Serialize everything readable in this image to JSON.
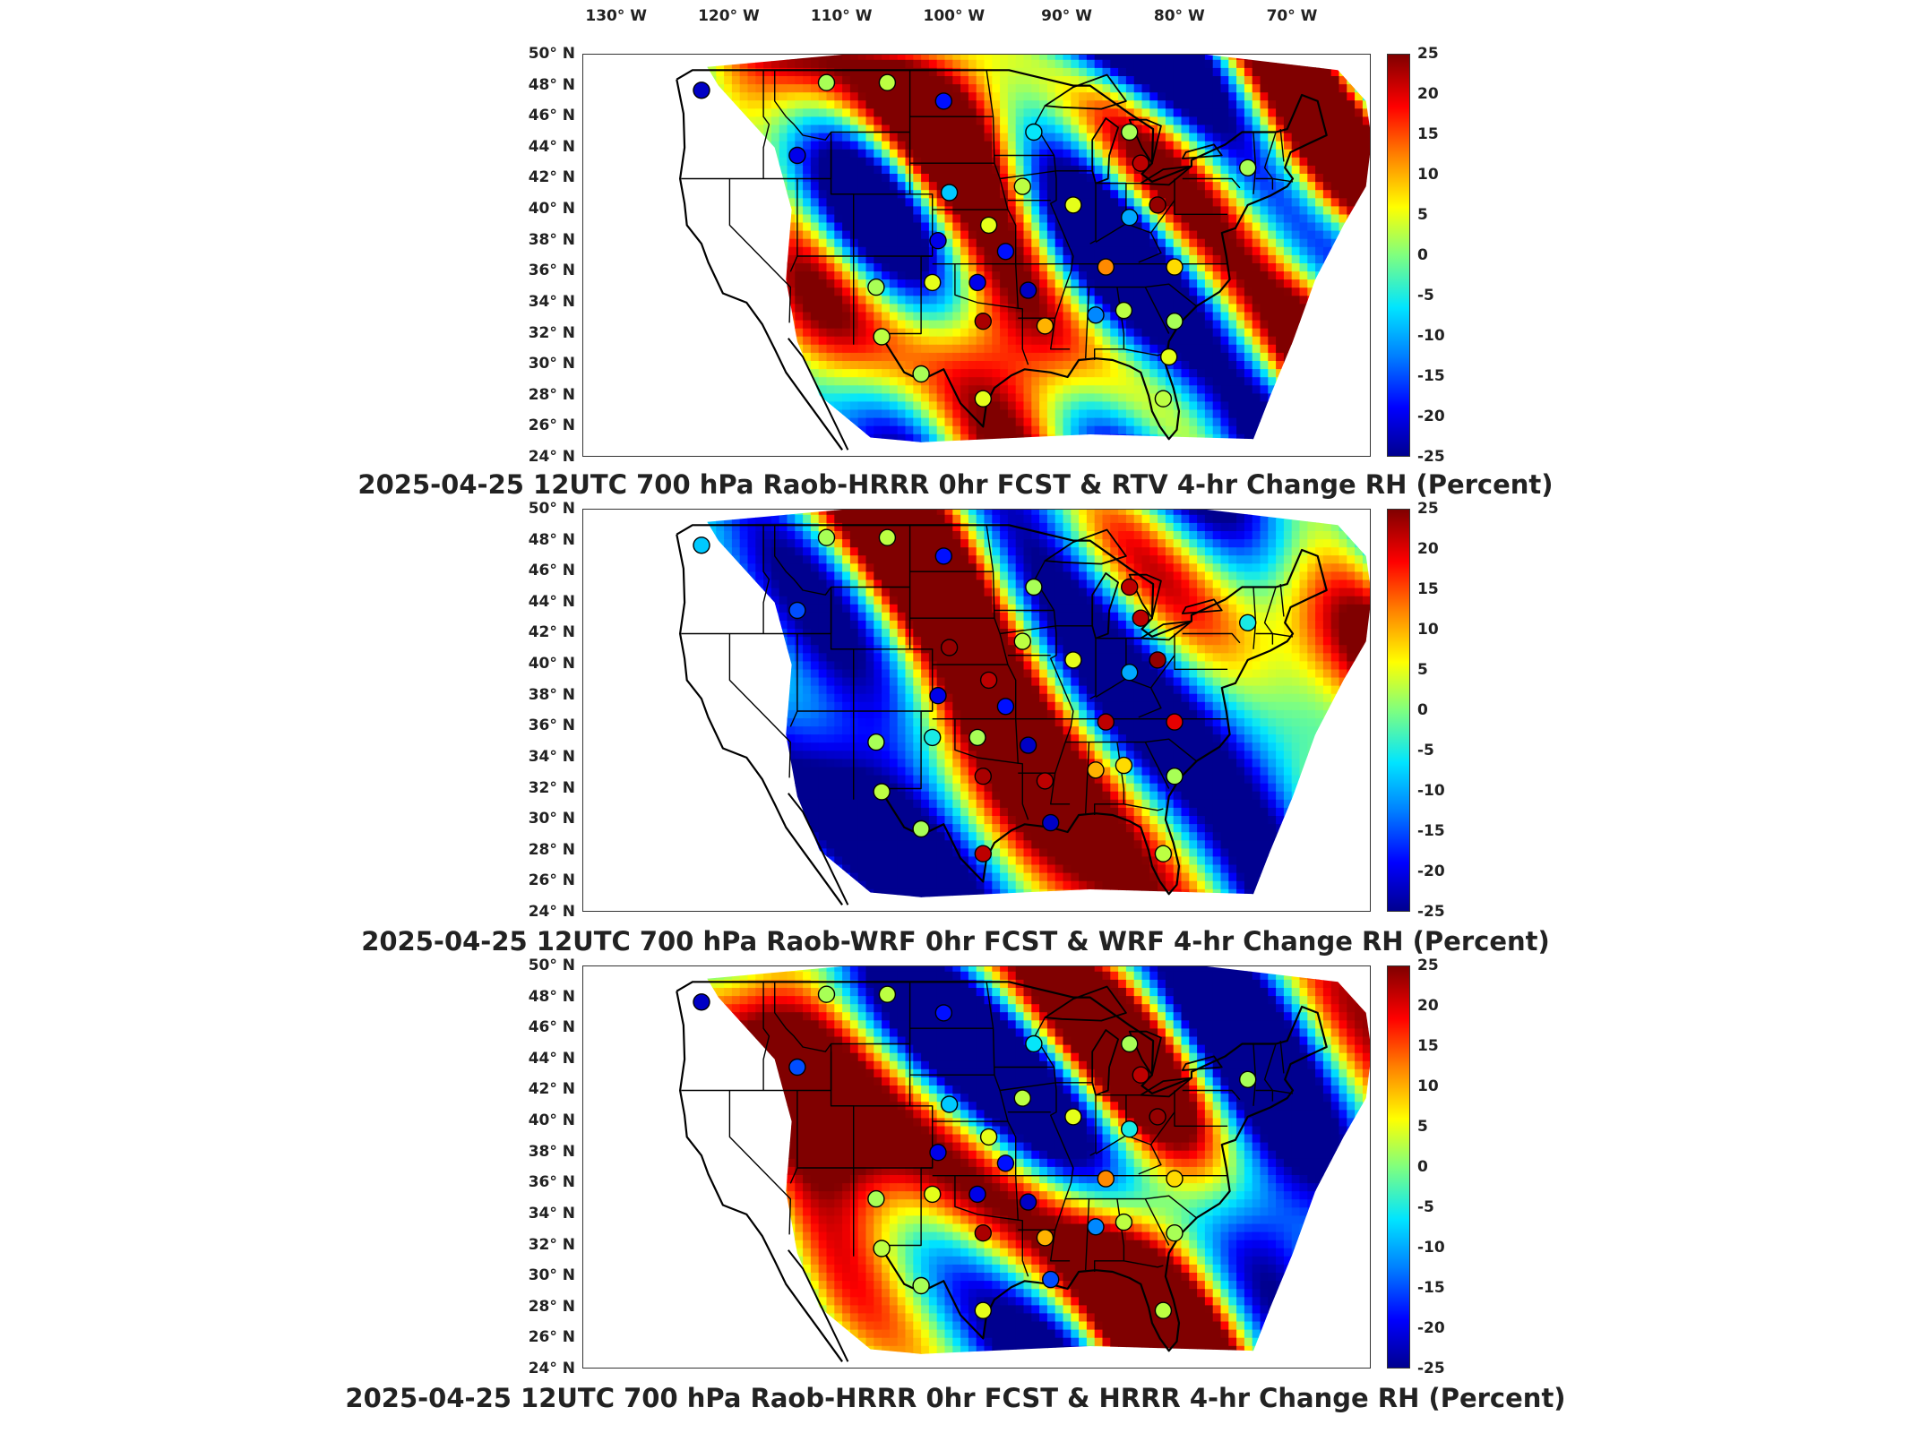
{
  "longitude_labels": [
    "130° W",
    "120° W",
    "110° W",
    "100° W",
    "90° W",
    "80° W",
    "70° W"
  ],
  "latitude_labels": [
    "50° N",
    "48° N",
    "46° N",
    "44° N",
    "42° N",
    "40° N",
    "38° N",
    "36° N",
    "34° N",
    "32° N",
    "30° N",
    "28° N",
    "26° N",
    "24° N"
  ],
  "colorbar_ticks": [
    "25",
    "20",
    "15",
    "10",
    "5",
    "0",
    "-5",
    "-10",
    "-15",
    "-20",
    "-25"
  ],
  "colormap": [
    "#00008f",
    "#0000ff",
    "#0080ff",
    "#00e5ff",
    "#7fff7f",
    "#ffff00",
    "#ff8000",
    "#ff0000",
    "#800000"
  ],
  "panels": [
    {
      "title": "2025-04-25 12UTC 700 hPa Raob-HRRR 0hr FCST & RTV 4-hr Change RH (Percent)",
      "field": "RTV 4-hr Change RH",
      "stations": [
        {
          "lon": -122.5,
          "lat": 47.7,
          "value": -22
        },
        {
          "lon": -111.4,
          "lat": 48.2,
          "value": 2
        },
        {
          "lon": -106.0,
          "lat": 48.2,
          "value": 3
        },
        {
          "lon": -101.0,
          "lat": 47.0,
          "value": -18
        },
        {
          "lon": -93.0,
          "lat": 45.0,
          "value": -6
        },
        {
          "lon": -84.5,
          "lat": 45.0,
          "value": 2
        },
        {
          "lon": -114.0,
          "lat": 43.5,
          "value": -20
        },
        {
          "lon": -83.5,
          "lat": 43.0,
          "value": 22
        },
        {
          "lon": -74.0,
          "lat": 42.7,
          "value": 2
        },
        {
          "lon": -100.5,
          "lat": 41.1,
          "value": -8
        },
        {
          "lon": -94.0,
          "lat": 41.5,
          "value": 3
        },
        {
          "lon": -89.5,
          "lat": 40.3,
          "value": 5
        },
        {
          "lon": -82.0,
          "lat": 40.3,
          "value": 24
        },
        {
          "lon": -84.5,
          "lat": 39.5,
          "value": -10
        },
        {
          "lon": -97.0,
          "lat": 39.0,
          "value": 5
        },
        {
          "lon": -101.5,
          "lat": 38.0,
          "value": -20
        },
        {
          "lon": -95.5,
          "lat": 37.3,
          "value": -18
        },
        {
          "lon": -86.6,
          "lat": 36.3,
          "value": 12
        },
        {
          "lon": -80.5,
          "lat": 36.3,
          "value": 8
        },
        {
          "lon": -93.5,
          "lat": 34.8,
          "value": -22
        },
        {
          "lon": -107.0,
          "lat": 35.0,
          "value": 2
        },
        {
          "lon": -102.0,
          "lat": 35.3,
          "value": 5
        },
        {
          "lon": -98.0,
          "lat": 35.3,
          "value": -20
        },
        {
          "lon": -97.5,
          "lat": 32.8,
          "value": 23
        },
        {
          "lon": -92.0,
          "lat": 32.5,
          "value": 10
        },
        {
          "lon": -87.5,
          "lat": 33.2,
          "value": -12
        },
        {
          "lon": -85.0,
          "lat": 33.5,
          "value": 3
        },
        {
          "lon": -80.5,
          "lat": 32.8,
          "value": 2
        },
        {
          "lon": -106.5,
          "lat": 31.8,
          "value": 3
        },
        {
          "lon": -103.0,
          "lat": 29.4,
          "value": 2
        },
        {
          "lon": -97.5,
          "lat": 27.8,
          "value": 5
        },
        {
          "lon": -81.5,
          "lat": 27.8,
          "value": 3
        },
        {
          "lon": -81.0,
          "lat": 30.5,
          "value": 5
        }
      ]
    },
    {
      "title": "2025-04-25 12UTC 700 hPa Raob-WRF 0hr FCST & WRF 4-hr Change RH (Percent)",
      "field": "WRF 4-hr Change RH",
      "stations": [
        {
          "lon": -122.5,
          "lat": 47.7,
          "value": -8
        },
        {
          "lon": -111.4,
          "lat": 48.2,
          "value": 2
        },
        {
          "lon": -106.0,
          "lat": 48.2,
          "value": 3
        },
        {
          "lon": -101.0,
          "lat": 47.0,
          "value": -18
        },
        {
          "lon": -93.0,
          "lat": 45.0,
          "value": 2
        },
        {
          "lon": -84.5,
          "lat": 45.0,
          "value": 22
        },
        {
          "lon": -114.0,
          "lat": 43.5,
          "value": -15
        },
        {
          "lon": -83.5,
          "lat": 43.0,
          "value": 22
        },
        {
          "lon": -74.0,
          "lat": 42.7,
          "value": -5
        },
        {
          "lon": -100.5,
          "lat": 41.1,
          "value": 24
        },
        {
          "lon": -94.0,
          "lat": 41.5,
          "value": 3
        },
        {
          "lon": -89.5,
          "lat": 40.3,
          "value": 5
        },
        {
          "lon": -82.0,
          "lat": 40.3,
          "value": 24
        },
        {
          "lon": -84.5,
          "lat": 39.5,
          "value": -10
        },
        {
          "lon": -97.0,
          "lat": 39.0,
          "value": 22
        },
        {
          "lon": -101.5,
          "lat": 38.0,
          "value": -20
        },
        {
          "lon": -95.5,
          "lat": 37.3,
          "value": -18
        },
        {
          "lon": -86.6,
          "lat": 36.3,
          "value": 22
        },
        {
          "lon": -80.5,
          "lat": 36.3,
          "value": 20
        },
        {
          "lon": -93.5,
          "lat": 34.8,
          "value": -22
        },
        {
          "lon": -107.0,
          "lat": 35.0,
          "value": 2
        },
        {
          "lon": -102.0,
          "lat": 35.3,
          "value": -5
        },
        {
          "lon": -98.0,
          "lat": 35.3,
          "value": 2
        },
        {
          "lon": -97.5,
          "lat": 32.8,
          "value": 23
        },
        {
          "lon": -92.0,
          "lat": 32.5,
          "value": 22
        },
        {
          "lon": -87.5,
          "lat": 33.2,
          "value": 10
        },
        {
          "lon": -85.0,
          "lat": 33.5,
          "value": 8
        },
        {
          "lon": -80.5,
          "lat": 32.8,
          "value": 2
        },
        {
          "lon": -106.5,
          "lat": 31.8,
          "value": 3
        },
        {
          "lon": -103.0,
          "lat": 29.4,
          "value": 2
        },
        {
          "lon": -97.5,
          "lat": 27.8,
          "value": 22
        },
        {
          "lon": -81.5,
          "lat": 27.8,
          "value": 3
        },
        {
          "lon": -91.5,
          "lat": 29.8,
          "value": -22
        }
      ]
    },
    {
      "title": "2025-04-25 12UTC 700 hPa Raob-HRRR 0hr FCST & HRRR 4-hr Change RH (Percent)",
      "field": "HRRR 4-hr Change RH",
      "stations": [
        {
          "lon": -122.5,
          "lat": 47.7,
          "value": -22
        },
        {
          "lon": -111.4,
          "lat": 48.2,
          "value": 2
        },
        {
          "lon": -106.0,
          "lat": 48.2,
          "value": 3
        },
        {
          "lon": -101.0,
          "lat": 47.0,
          "value": -18
        },
        {
          "lon": -93.0,
          "lat": 45.0,
          "value": -6
        },
        {
          "lon": -84.5,
          "lat": 45.0,
          "value": 2
        },
        {
          "lon": -114.0,
          "lat": 43.5,
          "value": -15
        },
        {
          "lon": -83.5,
          "lat": 43.0,
          "value": 22
        },
        {
          "lon": -74.0,
          "lat": 42.7,
          "value": 2
        },
        {
          "lon": -100.5,
          "lat": 41.1,
          "value": -8
        },
        {
          "lon": -94.0,
          "lat": 41.5,
          "value": 3
        },
        {
          "lon": -89.5,
          "lat": 40.3,
          "value": 5
        },
        {
          "lon": -82.0,
          "lat": 40.3,
          "value": 24
        },
        {
          "lon": -84.5,
          "lat": 39.5,
          "value": -5
        },
        {
          "lon": -97.0,
          "lat": 39.0,
          "value": 5
        },
        {
          "lon": -101.5,
          "lat": 38.0,
          "value": -20
        },
        {
          "lon": -95.5,
          "lat": 37.3,
          "value": -18
        },
        {
          "lon": -86.6,
          "lat": 36.3,
          "value": 12
        },
        {
          "lon": -80.5,
          "lat": 36.3,
          "value": 8
        },
        {
          "lon": -93.5,
          "lat": 34.8,
          "value": -22
        },
        {
          "lon": -107.0,
          "lat": 35.0,
          "value": 2
        },
        {
          "lon": -102.0,
          "lat": 35.3,
          "value": 5
        },
        {
          "lon": -98.0,
          "lat": 35.3,
          "value": -20
        },
        {
          "lon": -97.5,
          "lat": 32.8,
          "value": 23
        },
        {
          "lon": -92.0,
          "lat": 32.5,
          "value": 10
        },
        {
          "lon": -87.5,
          "lat": 33.2,
          "value": -12
        },
        {
          "lon": -85.0,
          "lat": 33.5,
          "value": 3
        },
        {
          "lon": -80.5,
          "lat": 32.8,
          "value": 2
        },
        {
          "lon": -106.5,
          "lat": 31.8,
          "value": 3
        },
        {
          "lon": -103.0,
          "lat": 29.4,
          "value": 2
        },
        {
          "lon": -97.5,
          "lat": 27.8,
          "value": 5
        },
        {
          "lon": -81.5,
          "lat": 27.8,
          "value": 3
        },
        {
          "lon": -91.5,
          "lat": 29.8,
          "value": -15
        }
      ]
    }
  ]
}
